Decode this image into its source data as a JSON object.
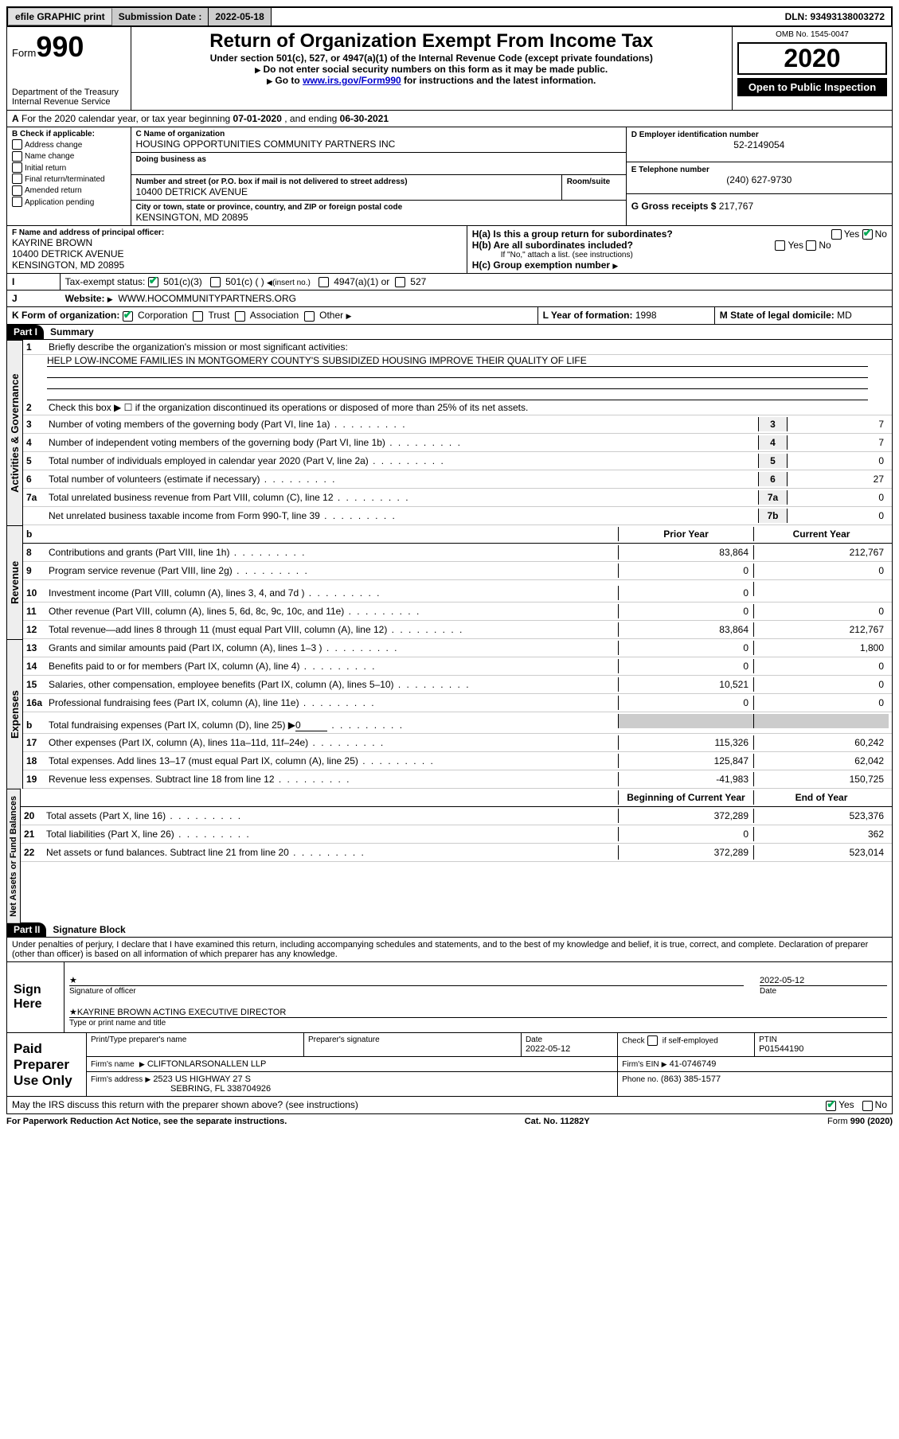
{
  "topbar": {
    "efile": "efile GRAPHIC print",
    "sub_label": "Submission Date :",
    "sub_date": "2022-05-18",
    "dln": "DLN: 93493138003272"
  },
  "header": {
    "form_word": "Form",
    "form_num": "990",
    "dept1": "Department of the Treasury",
    "dept2": "Internal Revenue Service",
    "title": "Return of Organization Exempt From Income Tax",
    "sub1": "Under section 501(c), 527, or 4947(a)(1) of the Internal Revenue Code (except private foundations)",
    "sub2": "Do not enter social security numbers on this form as it may be made public.",
    "sub3_a": "Go to ",
    "sub3_link": "www.irs.gov/Form990",
    "sub3_b": " for instructions and the latest information.",
    "omb": "OMB No. 1545-0047",
    "year": "2020",
    "open": "Open to Public Inspection"
  },
  "a_line": {
    "pre": "For the 2020 calendar year, or tax year beginning ",
    "begin": "07-01-2020",
    "mid": " , and ending ",
    "end": "06-30-2021"
  },
  "boxB": {
    "hdr": "B Check if applicable:",
    "items": [
      "Address change",
      "Name change",
      "Initial return",
      "Final return/terminated",
      "Amended return",
      "Application pending"
    ]
  },
  "boxC": {
    "lbl_name": "C Name of organization",
    "name": "HOUSING OPPORTUNITIES COMMUNITY PARTNERS INC",
    "dba_lbl": "Doing business as",
    "addr_lbl": "Number and street (or P.O. box if mail is not delivered to street address)",
    "room_lbl": "Room/suite",
    "addr": "10400 DETRICK AVENUE",
    "city_lbl": "City or town, state or province, country, and ZIP or foreign postal code",
    "city": "KENSINGTON, MD  20895"
  },
  "boxD": {
    "lbl": "D Employer identification number",
    "val": "52-2149054"
  },
  "boxE": {
    "lbl": "E Telephone number",
    "val": "(240) 627-9730"
  },
  "boxG": {
    "lbl": "G Gross receipts $",
    "val": "217,767"
  },
  "boxF": {
    "lbl": "F Name and address of principal officer:",
    "name": "KAYRINE BROWN",
    "addr1": "10400 DETRICK AVENUE",
    "addr2": "KENSINGTON, MD  20895"
  },
  "boxH": {
    "a": "H(a)  Is this a group return for subordinates?",
    "b": "H(b)  Are all subordinates included?",
    "b_note": "If \"No,\" attach a list. (see instructions)",
    "c": "H(c)  Group exemption number",
    "yes": "Yes",
    "no": "No"
  },
  "boxI": {
    "lbl": "Tax-exempt status:",
    "a": "501(c)(3)",
    "b": "501(c) (   )",
    "b2": "(insert no.)",
    "c": "4947(a)(1) or",
    "d": "527"
  },
  "boxJ": {
    "lbl": "Website:",
    "val": "WWW.HOCOMMUNITYPARTNERS.ORG"
  },
  "boxK": {
    "lbl": "K Form of organization:",
    "a": "Corporation",
    "b": "Trust",
    "c": "Association",
    "d": "Other"
  },
  "boxL": {
    "lbl": "L Year of formation:",
    "val": "1998"
  },
  "boxM": {
    "lbl": "M State of legal domicile:",
    "val": "MD"
  },
  "part1": {
    "tag": "Part I",
    "title": "Summary"
  },
  "gov": {
    "q1": "Briefly describe the organization's mission or most significant activities:",
    "mission": "HELP LOW-INCOME FAMILIES IN MONTGOMERY COUNTY'S SUBSIDIZED HOUSING IMPROVE THEIR QUALITY OF LIFE",
    "q2": "Check this box ▶ ☐  if the organization discontinued its operations or disposed of more than 25% of its net assets.",
    "rows": [
      {
        "n": "3",
        "t": "Number of voting members of the governing body (Part VI, line 1a)",
        "box": "3",
        "v": "7"
      },
      {
        "n": "4",
        "t": "Number of independent voting members of the governing body (Part VI, line 1b)",
        "box": "4",
        "v": "7"
      },
      {
        "n": "5",
        "t": "Total number of individuals employed in calendar year 2020 (Part V, line 2a)",
        "box": "5",
        "v": "0"
      },
      {
        "n": "6",
        "t": "Total number of volunteers (estimate if necessary)",
        "box": "6",
        "v": "27"
      },
      {
        "n": "7a",
        "t": "Total unrelated business revenue from Part VIII, column (C), line 12",
        "box": "7a",
        "v": "0"
      },
      {
        "n": "",
        "t": "Net unrelated business taxable income from Form 990-T, line 39",
        "box": "7b",
        "v": "0"
      }
    ]
  },
  "cols": {
    "b": "b",
    "prior": "Prior Year",
    "current": "Current Year",
    "boy": "Beginning of Current Year",
    "eoy": "End of Year"
  },
  "rev": [
    {
      "n": "8",
      "t": "Contributions and grants (Part VIII, line 1h)",
      "p": "83,864",
      "c": "212,767"
    },
    {
      "n": "9",
      "t": "Program service revenue (Part VIII, line 2g)",
      "p": "0",
      "c": "0"
    },
    {
      "n": "10",
      "t": "Investment income (Part VIII, column (A), lines 3, 4, and 7d )",
      "p": "0",
      "c": ""
    },
    {
      "n": "11",
      "t": "Other revenue (Part VIII, column (A), lines 5, 6d, 8c, 9c, 10c, and 11e)",
      "p": "0",
      "c": "0"
    },
    {
      "n": "12",
      "t": "Total revenue—add lines 8 through 11 (must equal Part VIII, column (A), line 12)",
      "p": "83,864",
      "c": "212,767"
    }
  ],
  "exp": [
    {
      "n": "13",
      "t": "Grants and similar amounts paid (Part IX, column (A), lines 1–3 )",
      "p": "0",
      "c": "1,800"
    },
    {
      "n": "14",
      "t": "Benefits paid to or for members (Part IX, column (A), line 4)",
      "p": "0",
      "c": "0"
    },
    {
      "n": "15",
      "t": "Salaries, other compensation, employee benefits (Part IX, column (A), lines 5–10)",
      "p": "10,521",
      "c": "0"
    },
    {
      "n": "16a",
      "t": "Professional fundraising fees (Part IX, column (A), line 11e)",
      "p": "0",
      "c": "0"
    },
    {
      "n": "b",
      "t": "Total fundraising expenses (Part IX, column (D), line 25) ▶",
      "p": "shade",
      "c": "shade",
      "inline": "0"
    },
    {
      "n": "17",
      "t": "Other expenses (Part IX, column (A), lines 11a–11d, 11f–24e)",
      "p": "115,326",
      "c": "60,242"
    },
    {
      "n": "18",
      "t": "Total expenses. Add lines 13–17 (must equal Part IX, column (A), line 25)",
      "p": "125,847",
      "c": "62,042"
    },
    {
      "n": "19",
      "t": "Revenue less expenses. Subtract line 18 from line 12",
      "p": "-41,983",
      "c": "150,725"
    }
  ],
  "net": [
    {
      "n": "20",
      "t": "Total assets (Part X, line 16)",
      "p": "372,289",
      "c": "523,376"
    },
    {
      "n": "21",
      "t": "Total liabilities (Part X, line 26)",
      "p": "0",
      "c": "362"
    },
    {
      "n": "22",
      "t": "Net assets or fund balances. Subtract line 21 from line 20",
      "p": "372,289",
      "c": "523,014"
    }
  ],
  "vtabs": {
    "gov": "Activities & Governance",
    "rev": "Revenue",
    "exp": "Expenses",
    "net": "Net Assets or Fund Balances"
  },
  "part2": {
    "tag": "Part II",
    "title": "Signature Block"
  },
  "penal": "Under penalties of perjury, I declare that I have examined this return, including accompanying schedules and statements, and to the best of my knowledge and belief, it is true, correct, and complete. Declaration of preparer (other than officer) is based on all information of which preparer has any knowledge.",
  "sign": {
    "lbl": "Sign Here",
    "sig_of": "Signature of officer",
    "date_lbl": "Date",
    "date": "2022-05-12",
    "name": "KAYRINE BROWN  ACTING EXECUTIVE DIRECTOR",
    "name_lbl": "Type or print name and title"
  },
  "prep": {
    "lbl": "Paid Preparer Use Only",
    "h1": "Print/Type preparer's name",
    "h2": "Preparer's signature",
    "h3": "Date",
    "h3v": "2022-05-12",
    "h4a": "Check",
    "h4b": "if self-employed",
    "h5": "PTIN",
    "h5v": "P01544190",
    "firm_lbl": "Firm's name",
    "firm": "CLIFTONLARSONALLEN LLP",
    "ein_lbl": "Firm's EIN",
    "ein": "41-0746749",
    "addr_lbl": "Firm's address",
    "addr1": "2523 US HIGHWAY 27 S",
    "addr2": "SEBRING, FL  338704926",
    "phone_lbl": "Phone no.",
    "phone": "(863) 385-1577"
  },
  "discuss": {
    "q": "May the IRS discuss this return with the preparer shown above? (see instructions)",
    "yes": "Yes",
    "no": "No"
  },
  "footer": {
    "a": "For Paperwork Reduction Act Notice, see the separate instructions.",
    "b": "Cat. No. 11282Y",
    "c": "Form 990 (2020)"
  }
}
